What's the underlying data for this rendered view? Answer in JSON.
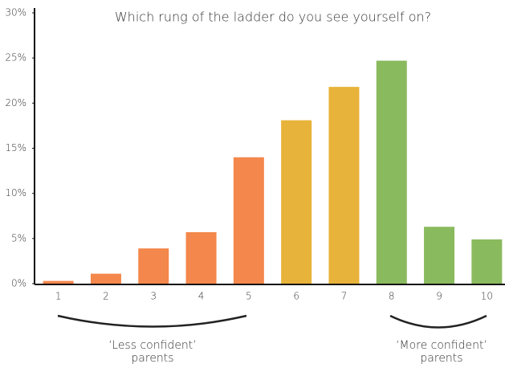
{
  "chart_data": {
    "type": "bar",
    "title": "Which rung of the ladder do you see yourself on?",
    "categories": [
      "1",
      "2",
      "3",
      "4",
      "5",
      "6",
      "7",
      "8",
      "9",
      "10"
    ],
    "values": [
      0.3,
      1.1,
      3.9,
      5.7,
      14.0,
      18.1,
      21.8,
      24.7,
      6.3,
      4.9
    ],
    "colors": [
      "#f4874b",
      "#f4874b",
      "#f4874b",
      "#f4874b",
      "#f4874b",
      "#e8b33a",
      "#e8b33a",
      "#8aba5e",
      "#8aba5e",
      "#8aba5e"
    ],
    "ylim": [
      0,
      30
    ],
    "yticks": [
      {
        "value": 0,
        "label": "0%"
      },
      {
        "value": 5,
        "label": "5%"
      },
      {
        "value": 10,
        "label": "10%"
      },
      {
        "value": 15,
        "label": "15%"
      },
      {
        "value": 20,
        "label": "20%"
      },
      {
        "value": 25,
        "label": "25%"
      },
      {
        "value": 30,
        "label": "30%"
      }
    ],
    "grid": false,
    "annotations": [
      [
        "‘Less confident’",
        "parents"
      ],
      [
        "‘More confident’",
        "parents"
      ]
    ]
  }
}
